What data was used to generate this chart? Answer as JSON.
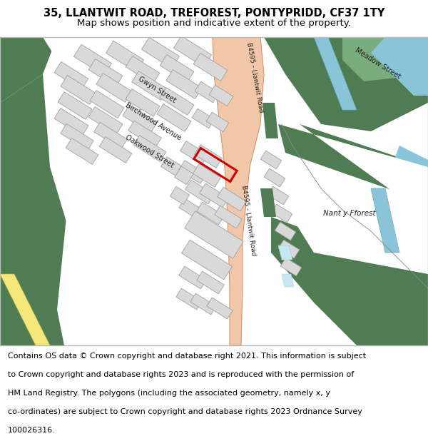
{
  "title_line1": "35, LLANTWIT ROAD, TREFOREST, PONTYPRIDD, CF37 1TY",
  "title_line2": "Map shows position and indicative extent of the property.",
  "footer_lines": [
    "Contains OS data © Crown copyright and database right 2021. This information is subject",
    "to Crown copyright and database rights 2023 and is reproduced with the permission of",
    "HM Land Registry. The polygons (including the associated geometry, namely x, y",
    "co-ordinates) are subject to Crown copyright and database rights 2023 Ordnance Survey",
    "100026316."
  ],
  "title_fontsize": 10.5,
  "subtitle_fontsize": 9.5,
  "footer_fontsize": 8.0,
  "fig_width": 6.0,
  "fig_height": 6.25,
  "map_bg": "#ffffff",
  "green_dark": "#4f7c52",
  "road_color": "#f2c6a8",
  "road_border": "#d4956d",
  "building_color": "#d9d9d9",
  "building_border": "#a0a0a0",
  "red_marker": "#cc0000",
  "blue_water": "#89c4d8",
  "yellow_road_fill": "#f5e87a",
  "yellow_road_edge": "#c8b040",
  "footer_bg": "#ffffff",
  "header_bg": "#ffffff",
  "border_color": "#bbbbbb",
  "light_green": "#7aad7e"
}
